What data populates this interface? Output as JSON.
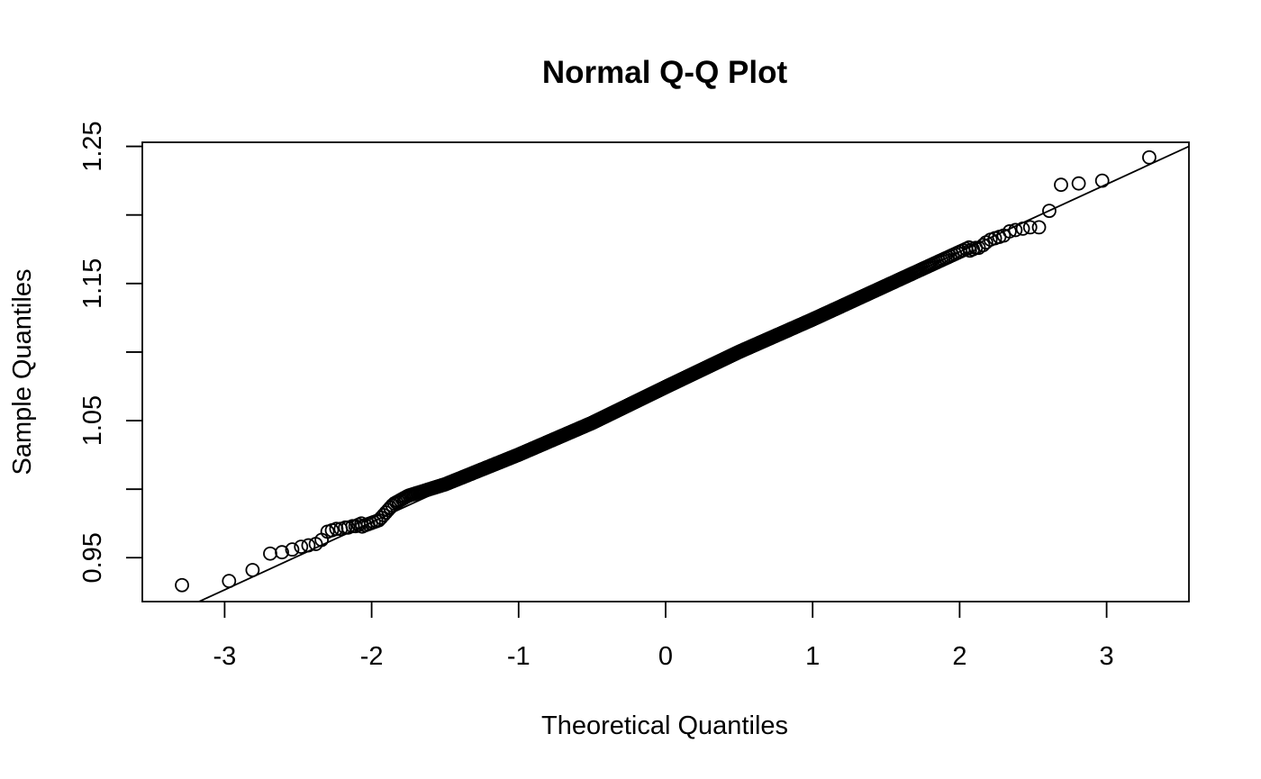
{
  "chart_data": {
    "type": "scatter",
    "title": "Normal Q-Q Plot",
    "xlabel": "Theoretical Quantiles",
    "ylabel": "Sample Quantiles",
    "xlim": [
      -3.56,
      3.56
    ],
    "ylim": [
      0.918,
      1.253
    ],
    "x_ticks": [
      -3,
      -2,
      -1,
      0,
      1,
      2,
      3
    ],
    "x_tick_labels": [
      "-3",
      "-2",
      "-1",
      "0",
      "1",
      "2",
      "3"
    ],
    "y_ticks": [
      0.95,
      1.0,
      1.05,
      1.1,
      1.15,
      1.2,
      1.25
    ],
    "y_tick_labels": [
      "0.95",
      "",
      "1.05",
      "",
      "1.15",
      "",
      "1.25"
    ],
    "grid": false,
    "reference_line": {
      "intercept": 1.0745,
      "slope": 0.0493
    },
    "n_points": 1000,
    "sample_mean": 1.0745,
    "sample_sd": 0.0493,
    "tail_points": [
      [
        -3.29,
        0.93
      ],
      [
        -2.97,
        0.933
      ],
      [
        -2.81,
        0.941
      ],
      [
        -2.69,
        0.953
      ],
      [
        -2.61,
        0.954
      ],
      [
        -2.54,
        0.956
      ],
      [
        -2.48,
        0.958
      ],
      [
        -2.43,
        0.959
      ],
      [
        -2.38,
        0.96
      ],
      [
        -2.34,
        0.963
      ],
      [
        -2.3,
        0.969
      ],
      [
        -2.27,
        0.97
      ],
      [
        -2.24,
        0.971
      ],
      [
        -2.21,
        0.971
      ],
      [
        -2.18,
        0.972
      ],
      [
        -2.16,
        0.972
      ],
      [
        -2.13,
        0.973
      ],
      [
        -2.11,
        0.973
      ],
      [
        -2.09,
        0.974
      ],
      [
        -2.07,
        0.975
      ],
      [
        2.07,
        1.174
      ],
      [
        2.09,
        1.175
      ],
      [
        2.11,
        1.176
      ],
      [
        2.13,
        1.176
      ],
      [
        2.16,
        1.178
      ],
      [
        2.18,
        1.18
      ],
      [
        2.21,
        1.182
      ],
      [
        2.24,
        1.183
      ],
      [
        2.27,
        1.184
      ],
      [
        2.3,
        1.185
      ],
      [
        2.34,
        1.188
      ],
      [
        2.38,
        1.189
      ],
      [
        2.43,
        1.19
      ],
      [
        2.48,
        1.191
      ],
      [
        2.54,
        1.191
      ],
      [
        2.61,
        1.203
      ],
      [
        2.69,
        1.222
      ],
      [
        2.81,
        1.223
      ],
      [
        2.97,
        1.225
      ],
      [
        3.29,
        1.242
      ]
    ],
    "central_deviations": [
      [
        -2.05,
        0.0
      ],
      [
        -1.95,
        -0.001
      ],
      [
        -1.85,
        0.006
      ],
      [
        -1.75,
        0.007
      ],
      [
        -1.5,
        0.003
      ],
      [
        -1.0,
        0.0
      ],
      [
        -0.5,
        -0.0015
      ],
      [
        0.0,
        0.0
      ],
      [
        0.5,
        0.001
      ],
      [
        1.0,
        0.0
      ],
      [
        1.5,
        0.0
      ],
      [
        1.85,
        0.0
      ],
      [
        2.05,
        0.0
      ]
    ]
  }
}
